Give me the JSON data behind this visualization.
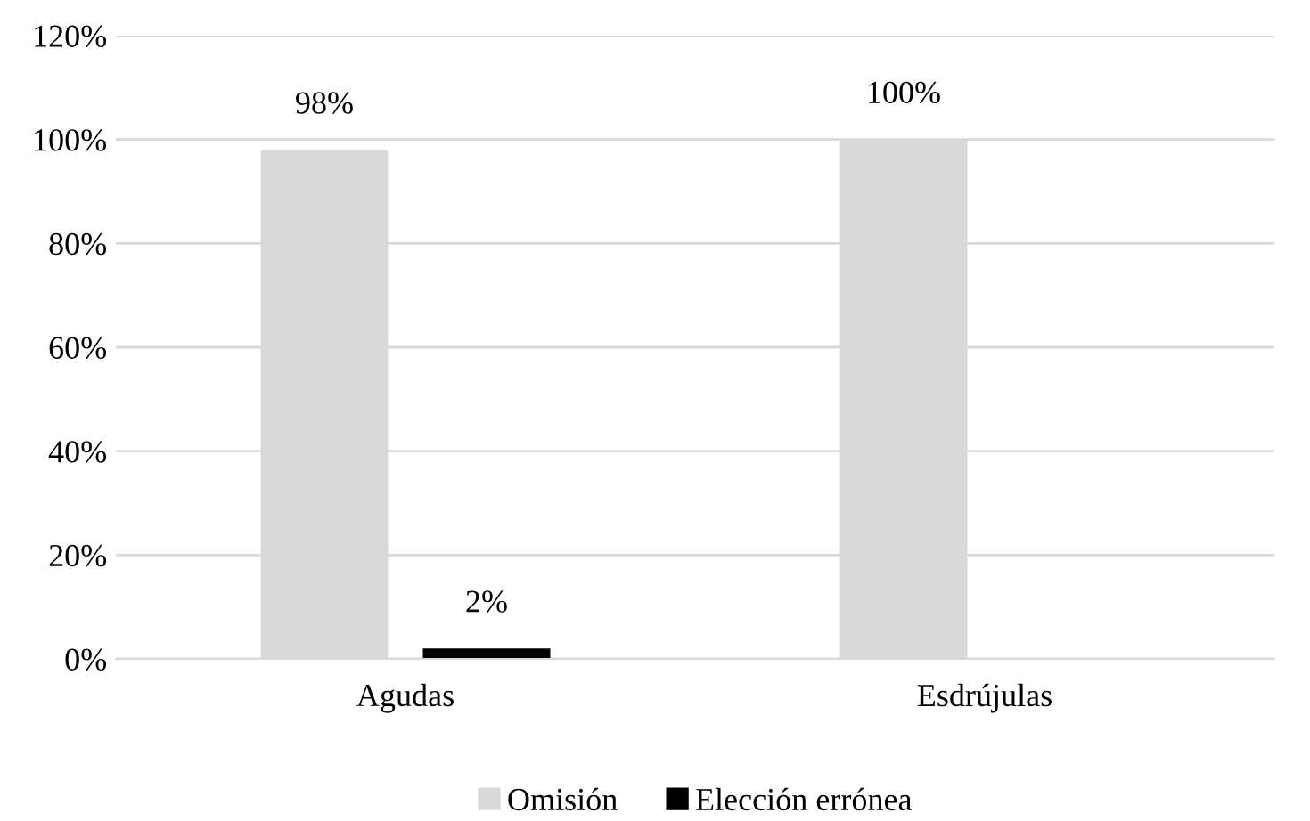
{
  "chart_data": {
    "type": "bar",
    "categories": [
      "Agudas",
      "Esdrújulas"
    ],
    "series": [
      {
        "name": "Omisión",
        "color": "#d9d9d9",
        "values": [
          98,
          100
        ],
        "value_labels": [
          "98%",
          "100%"
        ]
      },
      {
        "name": "Elección errónea",
        "color": "#000000",
        "values": [
          2,
          null
        ],
        "value_labels": [
          "2%",
          null
        ]
      }
    ],
    "ylim": [
      0,
      120
    ],
    "yticks": [
      {
        "value": 0,
        "label": "0%"
      },
      {
        "value": 20,
        "label": "20%"
      },
      {
        "value": 40,
        "label": "40%"
      },
      {
        "value": 60,
        "label": "60%"
      },
      {
        "value": 80,
        "label": "80%"
      },
      {
        "value": 100,
        "label": "100%"
      },
      {
        "value": 120,
        "label": "120%"
      }
    ],
    "grid": "y",
    "legend": "bottom"
  }
}
